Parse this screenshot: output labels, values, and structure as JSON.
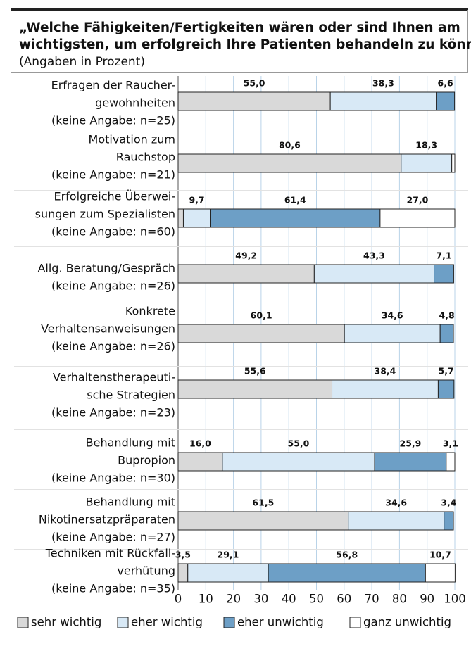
{
  "chart_data": {
    "type": "stacked-bar-horizontal",
    "title": [
      "„Welche Fähigkeiten/Fertigkeiten wären oder sind Ihnen am",
      "wichtigsten, um erfolgreich Ihre Patienten behandeln zu können?"
    ],
    "subtitle": "(Angaben in Prozent)",
    "categories": [
      [
        "Erfragen der Raucher-",
        "gewohnheiten",
        "(keine Angabe: n=25)"
      ],
      [
        "Motivation zum",
        "Rauchstop",
        "(keine Angabe: n=21)"
      ],
      [
        "Erfolgreiche Überwei-",
        "sungen zum Spezialisten",
        "(keine Angabe: n=60)"
      ],
      [
        "Allg. Beratung/Gespräch",
        "(keine Angabe: n=26)"
      ],
      [
        "Konkrete",
        "Verhaltensanweisungen",
        "(keine Angabe: n=26)"
      ],
      [
        "Verhaltenstherapeuti-",
        "sche Strategien",
        "(keine Angabe: n=23)"
      ],
      [
        "Behandlung mit",
        "Bupropion",
        "(keine Angabe: n=30)"
      ],
      [
        "Behandlung mit",
        "Nikotinersatzpräparaten",
        "(keine Angabe: n=27)"
      ],
      [
        "Techniken mit Rückfall-",
        "verhütung",
        "(keine Angabe: n=35)"
      ]
    ],
    "series": [
      {
        "name": "sehr wichtig",
        "color": "#d9d9d9",
        "values": [
          55.0,
          80.6,
          1.9,
          49.2,
          60.1,
          55.6,
          16.0,
          61.5,
          3.5
        ],
        "value_labels": [
          "55,0",
          "80,6",
          null,
          "49,2",
          "60,1",
          "55,6",
          "16,0",
          "61,5",
          "3,5"
        ]
      },
      {
        "name": "eher wichtig",
        "color": "#d8e9f6",
        "values": [
          38.3,
          18.3,
          9.7,
          43.3,
          34.6,
          38.4,
          55.0,
          34.6,
          29.1
        ],
        "value_labels": [
          "38,3",
          "18,3",
          "9,7",
          "43,3",
          "34,6",
          "38,4",
          "55,0",
          "34,6",
          "29,1"
        ]
      },
      {
        "name": "eher unwichtig",
        "color": "#6d9fc6",
        "values": [
          6.6,
          null,
          61.4,
          7.1,
          4.8,
          5.7,
          25.9,
          3.4,
          56.8
        ],
        "value_labels": [
          "6,6",
          null,
          "61,4",
          "7,1",
          "4,8",
          "5,7",
          "25,9",
          "3,4",
          "56,8"
        ]
      },
      {
        "name": "ganz unwichtig",
        "color": "#ffffff",
        "values": [
          null,
          1.1,
          27.0,
          null,
          null,
          null,
          3.1,
          null,
          10.7
        ],
        "value_labels": [
          null,
          null,
          "27,0",
          null,
          null,
          null,
          "3,1",
          null,
          "10,7"
        ]
      }
    ],
    "xlim": [
      0,
      100
    ],
    "xticks": [
      0,
      10,
      20,
      30,
      40,
      50,
      60,
      70,
      80,
      90,
      100
    ],
    "grid": true
  }
}
